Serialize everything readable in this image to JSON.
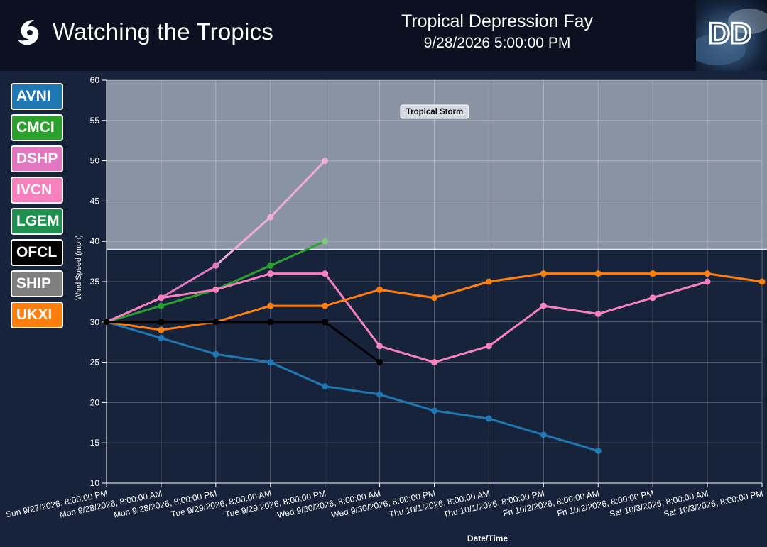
{
  "header": {
    "app_title": "Watching the Tropics",
    "storm_name": "Tropical Depression Fay",
    "storm_time": "9/28/2026 5:00:00 PM",
    "brand_text": "DD"
  },
  "legend": [
    {
      "label": "AVNI",
      "color": "#1f77b4"
    },
    {
      "label": "CMCI",
      "color": "#2ca02c"
    },
    {
      "label": "DSHP",
      "color": "#e377c2"
    },
    {
      "label": "IVCN",
      "color": "#f781bf"
    },
    {
      "label": "LGEM",
      "color": "#1e8f4e"
    },
    {
      "label": "OFCL",
      "color": "#000000"
    },
    {
      "label": "SHIP",
      "color": "#7f7f7f"
    },
    {
      "label": "UKXI",
      "color": "#ff7f0e"
    }
  ],
  "chart_data": {
    "type": "line",
    "xlabel": "Date/Time",
    "ylabel": "Wind Speed (mph)",
    "ylim": [
      10,
      60
    ],
    "yticks": [
      10,
      15,
      20,
      25,
      30,
      35,
      40,
      45,
      50,
      55,
      60
    ],
    "grid": true,
    "categories": [
      "Sun 9/27/2026, 8:00:00 PM",
      "Mon 9/28/2026, 8:00:00 AM",
      "Mon 9/28/2026, 8:00:00 PM",
      "Tue 9/29/2026, 8:00:00 AM",
      "Tue 9/29/2026, 8:00:00 PM",
      "Wed 9/30/2026, 8:00:00 AM",
      "Wed 9/30/2026, 8:00:00 PM",
      "Thu 10/1/2026, 8:00:00 AM",
      "Thu 10/1/2026, 8:00:00 PM",
      "Fri 10/2/2026, 8:00:00 AM",
      "Fri 10/2/2026, 8:00:00 PM",
      "Sat 10/3/2026, 8:00:00 AM",
      "Sat 10/3/2026, 8:00:00 PM"
    ],
    "band": {
      "label": "Tropical Storm",
      "from": 39,
      "to": 60
    },
    "series": [
      {
        "name": "AVNI",
        "color": "#1f77b4",
        "values": [
          30,
          28,
          26,
          25,
          22,
          21,
          19,
          18,
          16,
          14,
          null,
          null,
          null
        ]
      },
      {
        "name": "CMCI",
        "color": "#2ca02c",
        "values": [
          30,
          32,
          34,
          37,
          40,
          null,
          null,
          null,
          null,
          null,
          null,
          null,
          null
        ]
      },
      {
        "name": "DSHP",
        "color": "#e377c2",
        "values": [
          30,
          33,
          37,
          43,
          50,
          null,
          null,
          null,
          null,
          null,
          null,
          null,
          null
        ]
      },
      {
        "name": "IVCN",
        "color": "#f781bf",
        "values": [
          30,
          33,
          34,
          36,
          36,
          27,
          25,
          27,
          32,
          31,
          33,
          35,
          null
        ]
      },
      {
        "name": "UKXI",
        "color": "#ff7f0e",
        "values": [
          30,
          29,
          30,
          32,
          32,
          34,
          33,
          35,
          36,
          36,
          36,
          36,
          35
        ]
      },
      {
        "name": "OFCL",
        "color": "#000000",
        "values": [
          30,
          30,
          30,
          30,
          30,
          25,
          null,
          null,
          null,
          null,
          null,
          null,
          null
        ]
      }
    ]
  }
}
